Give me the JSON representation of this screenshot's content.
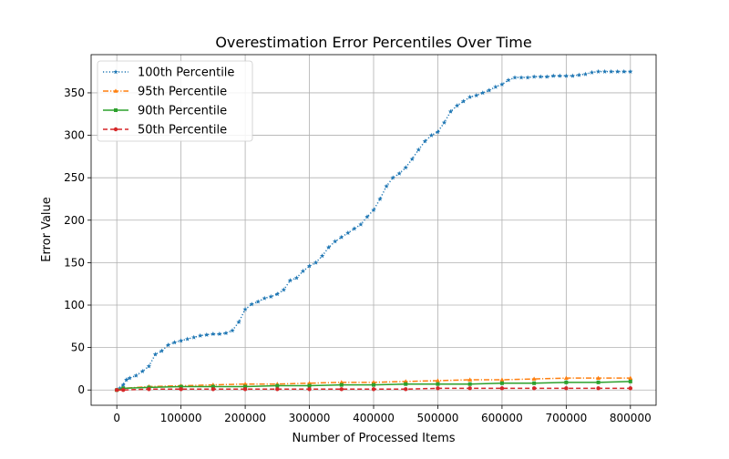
{
  "chart_data": {
    "type": "line",
    "title": "Overestimation Error Percentiles Over Time",
    "xlabel": "Number of Processed Items",
    "ylabel": "Error Value",
    "xlim": [
      -40000,
      840000
    ],
    "ylim": [
      -18,
      395
    ],
    "xticks": [
      0,
      100000,
      200000,
      300000,
      400000,
      500000,
      600000,
      700000,
      800000
    ],
    "xtick_labels": [
      "0",
      "100000",
      "200000",
      "300000",
      "400000",
      "500000",
      "600000",
      "700000",
      "800000"
    ],
    "yticks": [
      0,
      50,
      100,
      150,
      200,
      250,
      300,
      350
    ],
    "ytick_labels": [
      "0",
      "50",
      "100",
      "150",
      "200",
      "250",
      "300",
      "350"
    ],
    "grid": true,
    "legend_position": "top-left",
    "series": [
      {
        "name": "100th Percentile",
        "color": "#1f77b4",
        "line_style": "dotted",
        "marker": "star",
        "x": [
          0,
          5000,
          10000,
          15000,
          20000,
          30000,
          40000,
          50000,
          60000,
          70000,
          80000,
          90000,
          100000,
          110000,
          120000,
          130000,
          140000,
          150000,
          160000,
          170000,
          180000,
          190000,
          200000,
          210000,
          220000,
          230000,
          240000,
          250000,
          260000,
          270000,
          280000,
          290000,
          300000,
          310000,
          320000,
          330000,
          340000,
          350000,
          360000,
          370000,
          380000,
          390000,
          400000,
          410000,
          420000,
          430000,
          440000,
          450000,
          460000,
          470000,
          480000,
          490000,
          500000,
          510000,
          520000,
          530000,
          540000,
          550000,
          560000,
          570000,
          580000,
          590000,
          600000,
          610000,
          620000,
          630000,
          640000,
          650000,
          660000,
          670000,
          680000,
          690000,
          700000,
          710000,
          720000,
          730000,
          740000,
          750000,
          760000,
          770000,
          780000,
          790000,
          800000
        ],
        "y": [
          0,
          2,
          6,
          12,
          14,
          17,
          22,
          28,
          42,
          46,
          53,
          56,
          58,
          60,
          62,
          64,
          65,
          66,
          66,
          67,
          70,
          80,
          95,
          101,
          104,
          108,
          110,
          113,
          118,
          129,
          132,
          140,
          146,
          150,
          158,
          168,
          175,
          180,
          185,
          190,
          195,
          204,
          212,
          225,
          240,
          250,
          255,
          262,
          272,
          283,
          293,
          300,
          304,
          315,
          328,
          335,
          340,
          345,
          347,
          350,
          353,
          357,
          360,
          365,
          368,
          368,
          368,
          369,
          369,
          369,
          370,
          370,
          370,
          370,
          371,
          372,
          374,
          375,
          375,
          375,
          375,
          375,
          375
        ]
      },
      {
        "name": "95th Percentile",
        "color": "#ff7f0e",
        "line_style": "dashdot",
        "marker": "triangle",
        "x": [
          0,
          10000,
          50000,
          100000,
          150000,
          200000,
          250000,
          300000,
          350000,
          400000,
          450000,
          500000,
          550000,
          600000,
          650000,
          700000,
          750000,
          800000
        ],
        "y": [
          0,
          2,
          4,
          5,
          6,
          7,
          7,
          8,
          9,
          9,
          10,
          11,
          12,
          12,
          13,
          14,
          14,
          14
        ]
      },
      {
        "name": "90th Percentile",
        "color": "#2ca02c",
        "line_style": "solid",
        "marker": "square",
        "x": [
          0,
          10000,
          50000,
          100000,
          150000,
          200000,
          250000,
          300000,
          350000,
          400000,
          450000,
          500000,
          550000,
          600000,
          650000,
          700000,
          750000,
          800000
        ],
        "y": [
          0,
          2,
          3,
          4,
          4,
          4,
          5,
          5,
          6,
          6,
          7,
          7,
          7,
          8,
          8,
          9,
          9,
          10
        ]
      },
      {
        "name": "50th Percentile",
        "color": "#d62728",
        "line_style": "dashed",
        "marker": "circle",
        "x": [
          0,
          10000,
          50000,
          100000,
          150000,
          200000,
          250000,
          300000,
          350000,
          400000,
          450000,
          500000,
          550000,
          600000,
          650000,
          700000,
          750000,
          800000
        ],
        "y": [
          0,
          0,
          1,
          1,
          1,
          1,
          1,
          1,
          1,
          1,
          1,
          2,
          2,
          2,
          2,
          2,
          2,
          2
        ]
      }
    ]
  }
}
